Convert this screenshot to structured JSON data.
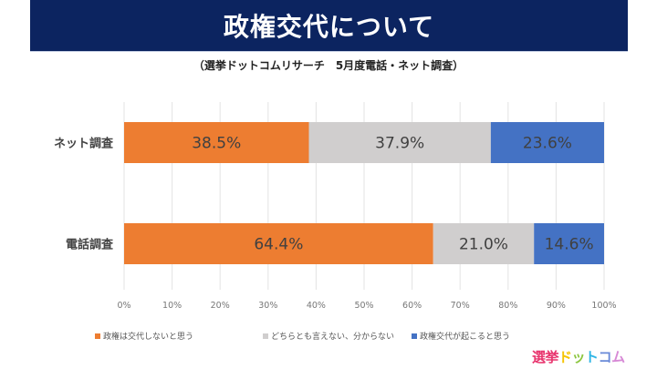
{
  "header": {
    "title": "政権交代について",
    "subtitle": "（選挙ドットコムリサーチ　5月度電話・ネット調査）"
  },
  "chart_data": {
    "type": "bar",
    "orientation": "horizontal",
    "stacked": "100%",
    "title": "政権交代について",
    "categories": [
      "ネット調査",
      "電話調査"
    ],
    "series": [
      {
        "name": "政権は交代しないと思う",
        "color": "#ed7d31",
        "values": [
          38.5,
          64.4
        ]
      },
      {
        "name": "どちらとも言えない、分からない",
        "color": "#d0cece",
        "values": [
          37.9,
          21.0
        ]
      },
      {
        "name": "政権交代が起こると思う",
        "color": "#4472c4",
        "values": [
          23.6,
          14.6
        ]
      }
    ],
    "data_labels": [
      [
        "38.5%",
        "37.9%",
        "23.6%"
      ],
      [
        "64.4%",
        "21.0%",
        "14.6%"
      ]
    ],
    "xlim": [
      0,
      100
    ],
    "x_ticks": [
      "0%",
      "10%",
      "20%",
      "30%",
      "40%",
      "50%",
      "60%",
      "70%",
      "80%",
      "90%",
      "100%"
    ],
    "grid": true,
    "legend_position": "bottom"
  },
  "brand": {
    "logo_parts": [
      {
        "text": "選挙",
        "color": "#e8336d"
      },
      {
        "text": "ド",
        "color": "#f5c400"
      },
      {
        "text": "ッ",
        "color": "#8cc63f"
      },
      {
        "text": "ト",
        "color": "#2eb5e5"
      },
      {
        "text": "コ",
        "color": "#6a8ad8"
      },
      {
        "text": "ム",
        "color": "#d78ad6"
      }
    ]
  }
}
